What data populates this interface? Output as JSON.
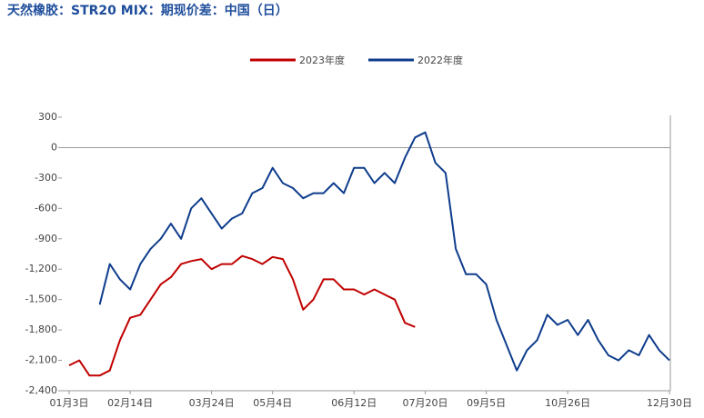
{
  "chart_data": {
    "type": "line",
    "title": "天然橡胶：STR20 MIX：期现价差：中国（日）",
    "categories": [
      "01月3日",
      null,
      null,
      null,
      null,
      null,
      "02月14日",
      null,
      null,
      null,
      null,
      null,
      null,
      null,
      "03月24日",
      null,
      null,
      null,
      null,
      null,
      "05月4日",
      null,
      null,
      null,
      null,
      null,
      null,
      null,
      "06月12日",
      null,
      null,
      null,
      null,
      null,
      null,
      "07月20日",
      null,
      null,
      null,
      null,
      null,
      "09月5日",
      null,
      null,
      null,
      null,
      null,
      null,
      null,
      "10月26日",
      null,
      null,
      null,
      null,
      null,
      null,
      null,
      null,
      null,
      "12月30日"
    ],
    "series": [
      {
        "name": "2023年度",
        "color": "#c00000",
        "values": [
          -2150,
          -2100,
          -2250,
          -2250,
          -2200,
          -1900,
          -1680,
          -1650,
          -1500,
          -1350,
          -1280,
          -1150,
          -1120,
          -1100,
          -1200,
          -1150,
          -1150,
          -1070,
          -1100,
          -1150,
          -1080,
          -1100,
          -1300,
          -1600,
          -1500,
          -1300,
          -1300,
          -1400,
          -1400,
          -1450,
          -1400,
          -1450,
          -1500,
          -1730,
          -1770,
          null,
          null,
          null,
          null,
          null,
          null,
          null,
          null,
          null,
          null,
          null,
          null,
          null,
          null,
          null,
          null,
          null,
          null,
          null,
          null,
          null,
          null,
          null,
          null,
          null
        ]
      },
      {
        "name": "2022年度",
        "color": "#0e3c8c",
        "values": [
          null,
          null,
          null,
          -1550,
          -1150,
          -1300,
          -1400,
          -1150,
          -1000,
          -900,
          -750,
          -900,
          -600,
          -500,
          -650,
          -800,
          -700,
          -650,
          -450,
          -400,
          -200,
          -350,
          -400,
          -500,
          -450,
          -450,
          -350,
          -450,
          -200,
          -200,
          -350,
          -250,
          -350,
          -100,
          100,
          150,
          -150,
          -250,
          -1000,
          -1250,
          -1250,
          -1350,
          -1700,
          -1950,
          -2200,
          -2000,
          -1900,
          -1650,
          -1750,
          -1700,
          -1850,
          -1700,
          -1900,
          -2050,
          -2100,
          -2000,
          -2050,
          -1850,
          -2000,
          -2100
        ]
      }
    ],
    "ylim": [
      -2400,
      300
    ],
    "yticks": [
      300,
      0,
      -300,
      -600,
      -900,
      {
        "value": -1200,
        "label": "-1,200"
      },
      {
        "value": -1500,
        "label": "-1,500"
      },
      {
        "value": -1800,
        "label": "-1,800"
      },
      {
        "value": -2100,
        "label": "-2,100"
      },
      {
        "value": -2400,
        "label": "-2,400"
      }
    ]
  }
}
